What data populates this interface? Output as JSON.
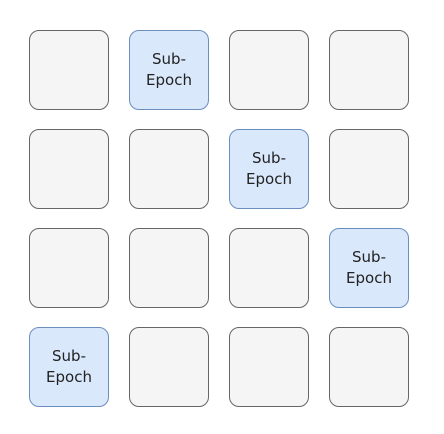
{
  "diagram": {
    "grid": {
      "rows": 4,
      "columns": 4
    },
    "highlight_label": "Sub-\nEpoch",
    "colors": {
      "plain_fill": "#f5f5f5",
      "plain_stroke": "#666666",
      "highlight_fill": "#dae8fc",
      "highlight_stroke": "#6c8ebf"
    },
    "cells": [
      {
        "highlighted": false,
        "label": ""
      },
      {
        "highlighted": true,
        "label": "Sub-\nEpoch"
      },
      {
        "highlighted": false,
        "label": ""
      },
      {
        "highlighted": false,
        "label": ""
      },
      {
        "highlighted": false,
        "label": ""
      },
      {
        "highlighted": false,
        "label": ""
      },
      {
        "highlighted": true,
        "label": "Sub-\nEpoch"
      },
      {
        "highlighted": false,
        "label": ""
      },
      {
        "highlighted": false,
        "label": ""
      },
      {
        "highlighted": false,
        "label": ""
      },
      {
        "highlighted": false,
        "label": ""
      },
      {
        "highlighted": true,
        "label": "Sub-\nEpoch"
      },
      {
        "highlighted": true,
        "label": "Sub-\nEpoch"
      },
      {
        "highlighted": false,
        "label": ""
      },
      {
        "highlighted": false,
        "label": ""
      },
      {
        "highlighted": false,
        "label": ""
      }
    ]
  }
}
